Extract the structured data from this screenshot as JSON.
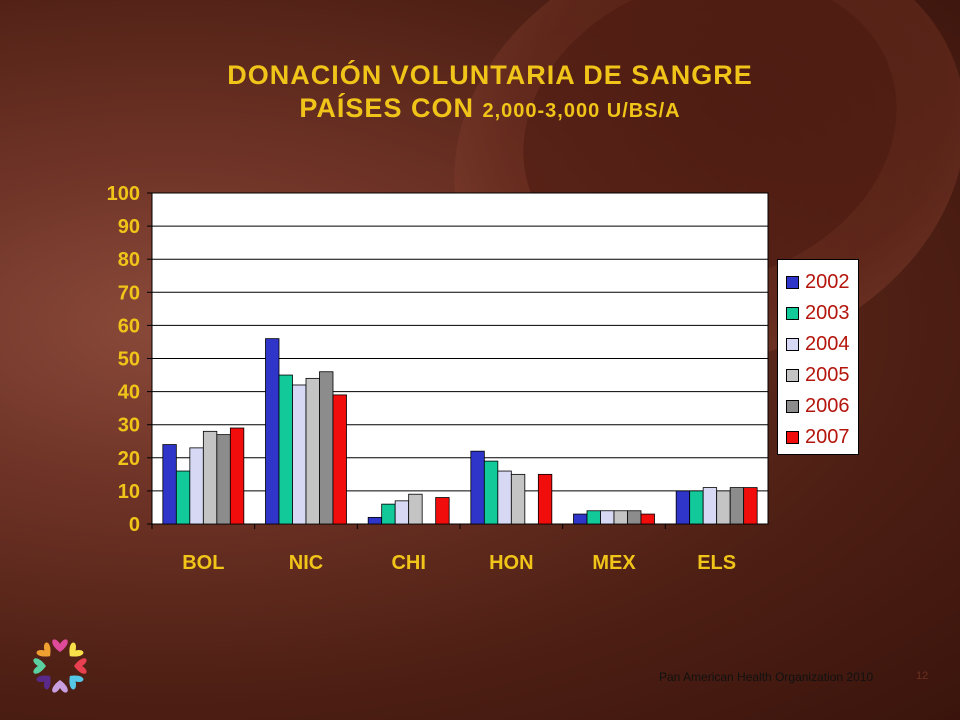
{
  "title": {
    "line1": "DONACIÓN VOLUNTARIA DE SANGRE",
    "line2_main": "PAÍSES CON ",
    "line2_small": "2,000-3,000 U/BS/A"
  },
  "footer": "Pan American Health Organization 2010",
  "page_number": "12",
  "chart_data": {
    "type": "bar",
    "categories": [
      "BOL",
      "NIC",
      "CHI",
      "HON",
      "MEX",
      "ELS"
    ],
    "series": [
      {
        "name": "2002",
        "color": "#2f35c8",
        "values": [
          24,
          56,
          2,
          22,
          3,
          10
        ]
      },
      {
        "name": "2003",
        "color": "#12c99a",
        "values": [
          16,
          45,
          6,
          19,
          4,
          10
        ]
      },
      {
        "name": "2004",
        "color": "#d6d8f4",
        "values": [
          23,
          42,
          7,
          16,
          4,
          11
        ]
      },
      {
        "name": "2005",
        "color": "#c4c4c4",
        "values": [
          28,
          44,
          9,
          15,
          4,
          10
        ]
      },
      {
        "name": "2006",
        "color": "#8c8c8c",
        "values": [
          27,
          46,
          0,
          0,
          4,
          11
        ]
      },
      {
        "name": "2007",
        "color": "#f20d0d",
        "values": [
          29,
          39,
          8,
          15,
          3,
          11
        ]
      }
    ],
    "ylim": [
      0,
      100
    ],
    "yticks": [
      "0",
      "10",
      "20",
      "30",
      "40",
      "50",
      "60",
      "70",
      "80",
      "90",
      "100"
    ],
    "grid": true,
    "legend": "right",
    "axis_label_color": "#f0c418",
    "plot_background": "#ffffff"
  }
}
